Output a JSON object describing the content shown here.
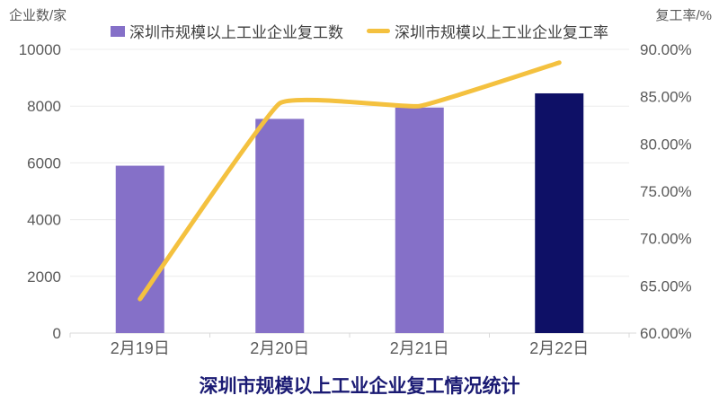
{
  "title": "深圳市规模以上工业企业复工情况统计",
  "header": {
    "left_axis_title": "企业数/家",
    "right_axis_title": "复工率/%"
  },
  "legend": [
    {
      "label": "深圳市规模以上工业企业复工数",
      "marker": "square",
      "color": "#8570C8"
    },
    {
      "label": "深圳市规模以上工业企业复工率",
      "marker": "line",
      "color": "#F4C13F"
    }
  ],
  "colors": {
    "bar_purple": "#8570C8",
    "bar_navy": "#0E1066",
    "line_yellow": "#F4C13F",
    "title_navy": "#1A1A73",
    "axis_text": "#595959",
    "legend_text": "#404040",
    "gridline": "#ECECEC",
    "axis_line": "#D9D9D9"
  },
  "chart_data": {
    "type": "combo",
    "title": "深圳市规模以上工业企业复工情况统计",
    "categories": [
      "2月19日",
      "2月20日",
      "2月21日",
      "2月22日"
    ],
    "series": [
      {
        "name": "深圳市规模以上工业企业复工数",
        "type": "bar",
        "axis": "left",
        "values": [
          5900,
          7550,
          7950,
          8450
        ],
        "bar_colors": [
          "#8570C8",
          "#8570C8",
          "#8570C8",
          "#0E1066"
        ]
      },
      {
        "name": "深圳市规模以上工业企业复工率",
        "type": "line",
        "axis": "right",
        "values": [
          63.6,
          84.3,
          84.0,
          88.6
        ],
        "color": "#F4C13F"
      }
    ],
    "left_axis": {
      "title": "企业数/家",
      "min": 0,
      "max": 10000,
      "step": 2000,
      "tick_labels": [
        "0",
        "2000",
        "4000",
        "6000",
        "8000",
        "10000"
      ]
    },
    "right_axis": {
      "title": "复工率/%",
      "min": 60,
      "max": 90,
      "step": 5,
      "tick_labels": [
        "60.00%",
        "65.00%",
        "70.00%",
        "75.00%",
        "80.00%",
        "85.00%",
        "90.00%"
      ]
    },
    "grid": true,
    "legend_position": "top"
  }
}
